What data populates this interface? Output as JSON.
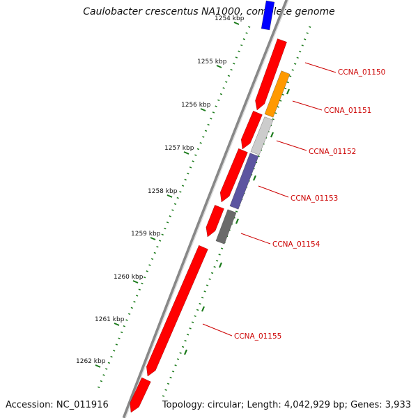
{
  "title": "Caulobacter crescentus NA1000, complete genome",
  "footer": {
    "accession": "Accession: NC_011916",
    "summary": "Topology: circular; Length: 4,042,929 bp; Genes: 3,933"
  },
  "ticks": [
    {
      "label": "1254 kbp",
      "faded": true
    },
    {
      "label": "1255 kbp"
    },
    {
      "label": "1256 kbp"
    },
    {
      "label": "1257 kbp"
    },
    {
      "label": "1258 kbp"
    },
    {
      "label": "1259 kbp"
    },
    {
      "label": "1260 kbp"
    },
    {
      "label": "1261 kbp"
    },
    {
      "label": "1262 kbp"
    }
  ],
  "genes": [
    {
      "label": "CCNA_01150",
      "color": "#ff9900"
    },
    {
      "label": "CCNA_01151",
      "color": "#cccccc"
    },
    {
      "label": "CCNA_01152",
      "color": "#5c55a0"
    },
    {
      "label": "CCNA_01153",
      "color": "#6b6b6b"
    },
    {
      "label": "CCNA_01154",
      "color": "#ff0000"
    },
    {
      "label": "CCNA_01155",
      "color": "#ff0000"
    }
  ],
  "colors": {
    "backbone": "#888888",
    "forward_gene": "#ff0000",
    "blue_feature": "#0000ff",
    "tick_marks": "#1a7a1a",
    "label_text": "#cc0000"
  }
}
